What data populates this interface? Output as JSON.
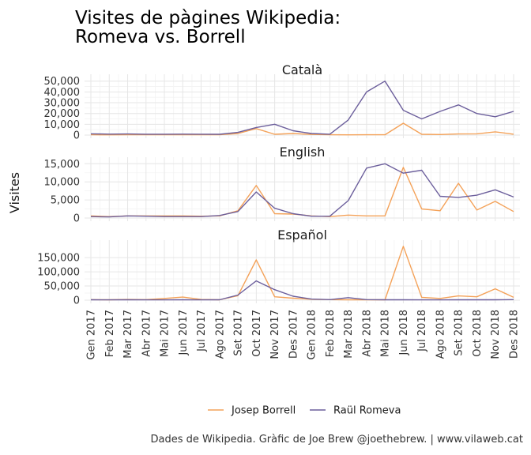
{
  "chart_data": {
    "type": "line",
    "title_lines": [
      "Visites de pàgines Wikipedia:",
      "Romeva vs. Borrell"
    ],
    "ylabel": "Visites",
    "caption": "Dades de Wikipedia. Gràfic de Joe Brew @joethebrew. | www.vilaweb.cat",
    "categories": [
      "Gen 2017",
      "Feb 2017",
      "Mar 2017",
      "Abr 2017",
      "Mai 2017",
      "Jun 2017",
      "Jul 2017",
      "Ago 2017",
      "Set 2017",
      "Oct 2017",
      "Nov 2017",
      "Des 2017",
      "Gen 2018",
      "Feb 2018",
      "Mar 2018",
      "Abr 2018",
      "Mai 2018",
      "Jun 2018",
      "Jul 2018",
      "Ago 2018",
      "Set 2018",
      "Oct 2018",
      "Nov 2018",
      "Des 2018"
    ],
    "legend": [
      {
        "name": "Josep Borrell",
        "color": "#f4a259"
      },
      {
        "name": "Raül Romeva",
        "color": "#6c5f9c"
      }
    ],
    "panels": [
      {
        "name": "Català",
        "ylim": [
          0,
          52000
        ],
        "yticks": [
          0,
          10000,
          20000,
          30000,
          40000,
          50000
        ],
        "ytick_labels": [
          "0",
          "10,000",
          "20,000",
          "30,000",
          "40,000",
          "50,000"
        ],
        "series": [
          {
            "name": "Josep Borrell",
            "values": [
              300,
              200,
              400,
              300,
              300,
              400,
              300,
              300,
              1500,
              6000,
              700,
              1500,
              600,
              300,
              200,
              300,
              300,
              11000,
              700,
              500,
              1000,
              1200,
              3000,
              800
            ]
          },
          {
            "name": "Raül Romeva",
            "values": [
              1200,
              900,
              1000,
              800,
              800,
              900,
              800,
              700,
              2500,
              7000,
              10000,
              4000,
              1500,
              800,
              14000,
              40000,
              50000,
              23000,
              15000,
              22000,
              28000,
              20000,
              17000,
              22000
            ]
          }
        ]
      },
      {
        "name": "English",
        "ylim": [
          0,
          15500
        ],
        "yticks": [
          0,
          5000,
          10000,
          15000
        ],
        "ytick_labels": [
          "0",
          "5,000",
          "10,000",
          "15,000"
        ],
        "series": [
          {
            "name": "Josep Borrell",
            "values": [
              600,
              400,
              600,
              600,
              600,
              600,
              500,
              600,
              2000,
              9000,
              1200,
              1100,
              600,
              400,
              800,
              600,
              600,
              14000,
              2500,
              2000,
              9600,
              2200,
              4600,
              1800
            ]
          },
          {
            "name": "Raül Romeva",
            "values": [
              400,
              300,
              600,
              500,
              400,
              400,
              400,
              700,
              1800,
              7200,
              2700,
              1200,
              500,
              500,
              4800,
              13800,
              15000,
              12400,
              13200,
              6000,
              5700,
              6300,
              7800,
              5800
            ]
          }
        ]
      },
      {
        "name": "Español",
        "ylim": [
          0,
          195000
        ],
        "yticks": [
          0,
          50000,
          100000,
          150000
        ],
        "ytick_labels": [
          "0",
          "50,000",
          "100,000",
          "150,000"
        ],
        "series": [
          {
            "name": "Josep Borrell",
            "values": [
              2000,
              1500,
              2500,
              2000,
              6000,
              11000,
              2500,
              1500,
              16000,
              142000,
              12000,
              7000,
              3000,
              2000,
              1500,
              1500,
              1500,
              190000,
              10000,
              6000,
              15000,
              12000,
              40000,
              10000
            ]
          },
          {
            "name": "Raül Romeva",
            "values": [
              1500,
              1000,
              1500,
              1000,
              1000,
              1500,
              1000,
              1500,
              18000,
              68000,
              37000,
              14000,
              4000,
              2000,
              9000,
              2000,
              1500,
              1500,
              1000,
              1000,
              1500,
              1500,
              1500,
              2000
            ]
          }
        ]
      }
    ]
  }
}
